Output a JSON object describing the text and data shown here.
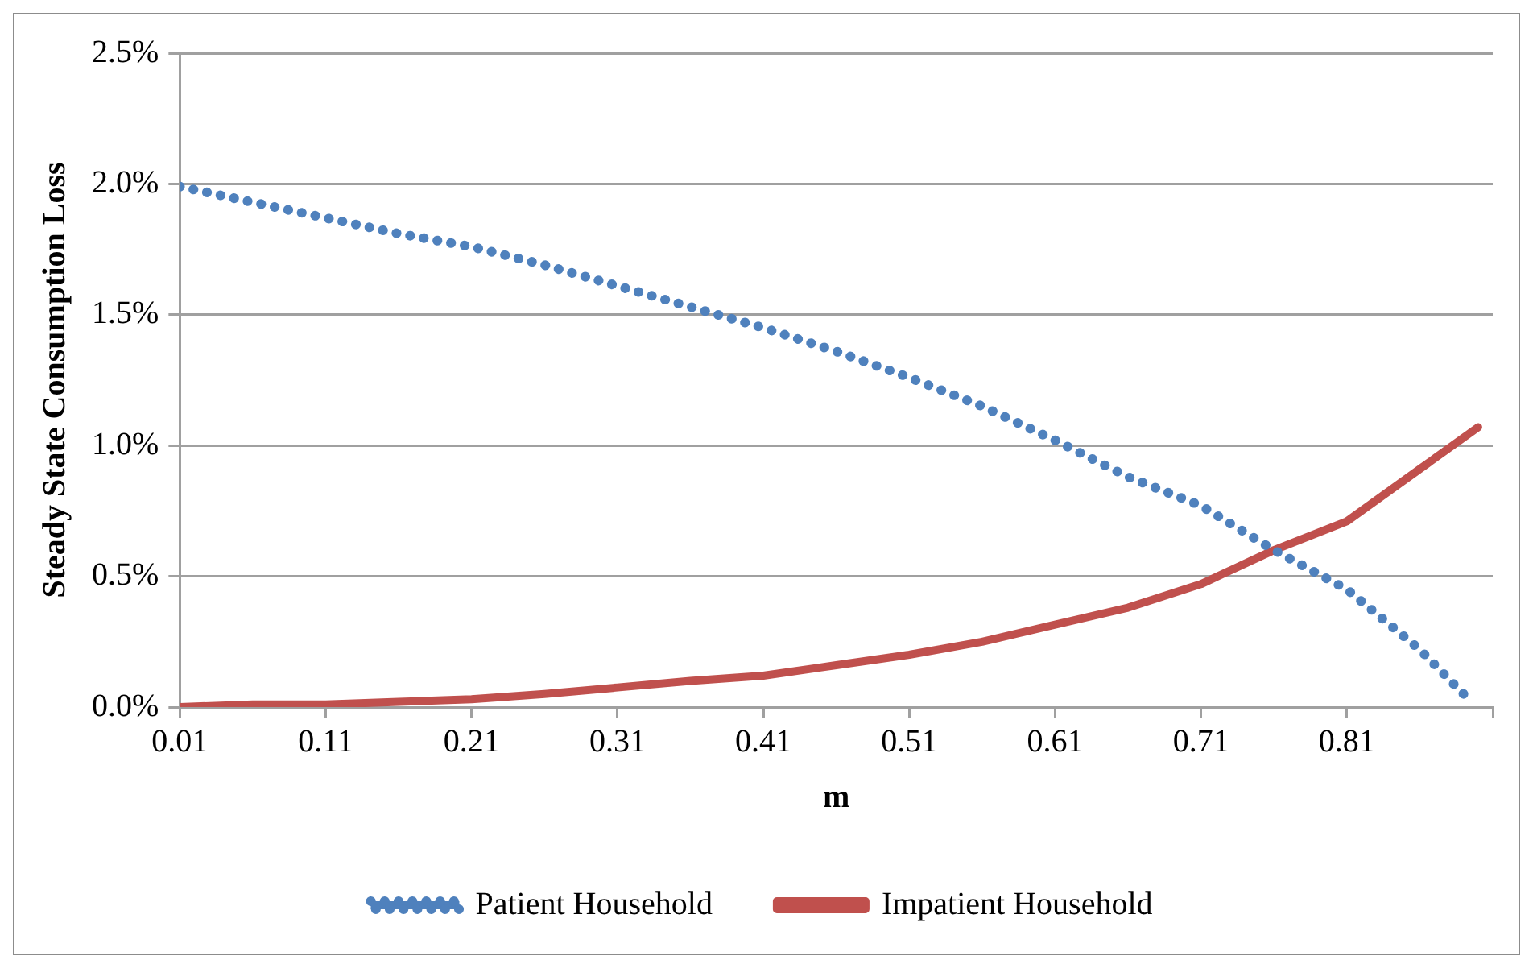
{
  "chart_data": {
    "type": "line",
    "xlabel": "m",
    "ylabel": "Steady State Consumption Loss",
    "xlim": [
      0.01,
      0.91
    ],
    "xticks": [
      0.01,
      0.11,
      0.21,
      0.31,
      0.41,
      0.51,
      0.61,
      0.71,
      0.81,
      {
        "value": 0.91,
        "label": null
      }
    ],
    "ylim": [
      0,
      2.5
    ],
    "yticks": [
      {
        "value": 0,
        "label": "0.0%"
      },
      {
        "value": 0.5,
        "label": "0.5%"
      },
      {
        "value": 1,
        "label": "1.0%"
      },
      {
        "value": 1.5,
        "label": "1.5%"
      },
      {
        "value": 2,
        "label": "2.0%"
      },
      {
        "value": 2.5,
        "label": "2.5%"
      }
    ],
    "grid": "y",
    "legend": "bottom",
    "series": [
      {
        "name": "Patient Household",
        "color": "#4f81bd",
        "line_style": "dotted",
        "x": [
          0.01,
          0.06,
          0.11,
          0.16,
          0.21,
          0.26,
          0.31,
          0.36,
          0.41,
          0.46,
          0.51,
          0.56,
          0.61,
          0.66,
          0.71,
          0.76,
          0.81,
          0.86,
          0.89
        ],
        "values": [
          1.99,
          1.93,
          1.87,
          1.81,
          1.76,
          1.69,
          1.61,
          1.53,
          1.45,
          1.36,
          1.26,
          1.15,
          1.02,
          0.88,
          0.77,
          0.6,
          0.45,
          0.22,
          0.05
        ]
      },
      {
        "name": "Impatient Household",
        "color": "#c0504d",
        "line_style": "solid",
        "x": [
          0.01,
          0.06,
          0.11,
          0.16,
          0.21,
          0.26,
          0.31,
          0.36,
          0.41,
          0.46,
          0.51,
          0.56,
          0.61,
          0.66,
          0.71,
          0.76,
          0.81,
          0.86,
          0.9
        ],
        "values": [
          0,
          0.01,
          0.01,
          0.02,
          0.03,
          0.05,
          0.075,
          0.1,
          0.12,
          0.16,
          0.2,
          0.25,
          0.315,
          0.38,
          0.47,
          0.6,
          0.71,
          0.91,
          1.07
        ]
      }
    ]
  }
}
